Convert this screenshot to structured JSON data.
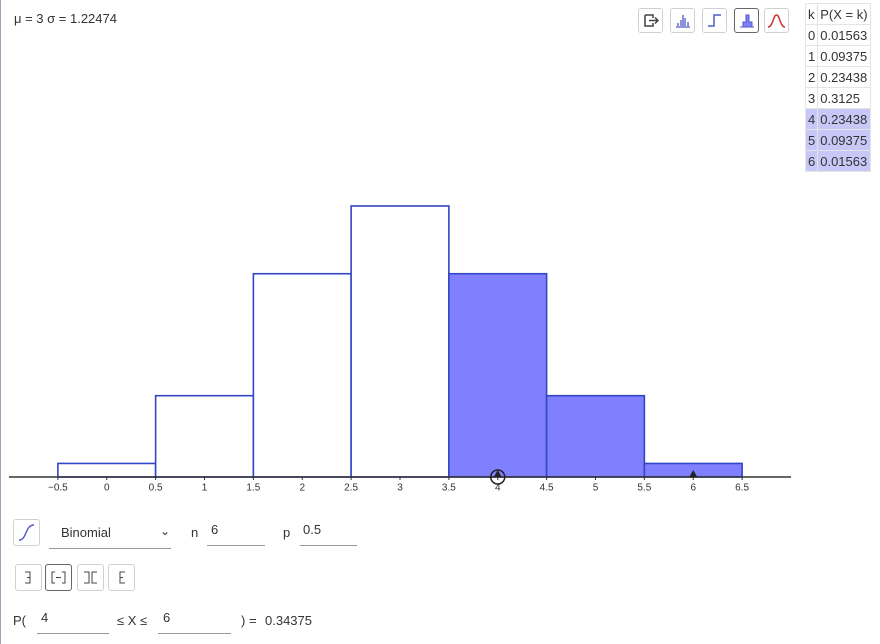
{
  "stats": "μ = 3 σ = 1.22474",
  "chart": {
    "type": "histogram",
    "bins": [
      -0.5,
      0.5,
      1.5,
      2.5,
      3.5,
      4.5,
      5.5,
      6.5
    ],
    "values": [
      0.01563,
      0.09375,
      0.23438,
      0.3125,
      0.23438,
      0.09375,
      0.01563
    ],
    "xlim": [
      -1,
      7
    ],
    "ylim": [
      0,
      0.55
    ],
    "xticks": [
      {
        "value": -0.5,
        "label": "−0.5"
      },
      0,
      0.5,
      1,
      1.5,
      2,
      2.5,
      3,
      3.5,
      4,
      4.5,
      5,
      5.5,
      6,
      6.5
    ],
    "edge_color": "#3346c4",
    "fill_color": "#8080ff"
  },
  "table": {
    "header": [
      "k",
      "P(X = k)"
    ],
    "rows": [
      [
        0,
        0.01563
      ],
      [
        1,
        0.09375
      ],
      [
        2,
        0.23438
      ],
      [
        3,
        0.3125
      ],
      [
        4,
        0.23438
      ],
      [
        5,
        0.09375
      ],
      [
        6,
        0.01563
      ]
    ]
  },
  "distribution": {
    "name": "Binomial",
    "n_label": "n",
    "n": 6,
    "p_label": "p",
    "p": 0.5
  },
  "interval": {
    "prefix": "P(",
    "low": 4,
    "relation": "≤ X ≤",
    "high": 6,
    "equals": ") =",
    "result": 0.34375
  }
}
